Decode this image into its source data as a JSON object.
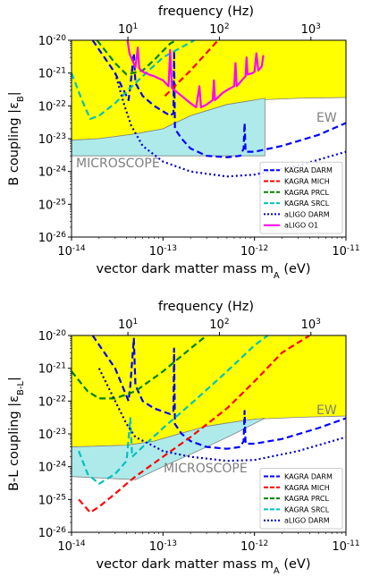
{
  "chart_data": [
    {
      "type": "line",
      "xlabel": "vector dark matter mass m_A (eV)",
      "top_xlabel": "frequency (Hz)",
      "ylabel": "B coupling |ε_B|",
      "xlog": true,
      "ylog": true,
      "xlim": [
        1e-14,
        1e-11
      ],
      "ylim": [
        1e-26,
        1e-20
      ],
      "x_ticks": [
        "10^{-14}",
        "10^{-13}",
        "10^{-12}",
        "10^{-11}"
      ],
      "y_ticks": [
        "10^{-26}",
        "10^{-25}",
        "10^{-24}",
        "10^{-23}",
        "10^{-22}",
        "10^{-21}",
        "10^{-20}"
      ],
      "top_ticks": [
        "10^{1}",
        "10^{2}",
        "10^{3}"
      ],
      "legend_position": "lower right",
      "regions": [
        {
          "label": "EW",
          "color": "#ffff00",
          "upper": 1e-20,
          "boundary": [
            [
              1e-14,
              9e-24
            ],
            [
              2e-14,
              1e-23
            ],
            [
              5e-14,
              1.4e-23
            ],
            [
              1e-13,
              2e-23
            ],
            [
              2e-13,
              5e-23
            ],
            [
              5e-13,
              1.1e-22
            ],
            [
              1e-12,
              1.5e-22
            ],
            [
              3e-12,
              1.7e-22
            ],
            [
              1e-11,
              1.8e-22
            ]
          ]
        },
        {
          "label": "MICROSCOPE",
          "color": "#aeeaea",
          "upper_curve": [
            [
              1e-14,
              9e-24
            ],
            [
              2e-14,
              1e-23
            ],
            [
              5e-14,
              1.4e-23
            ],
            [
              1e-13,
              2e-23
            ],
            [
              2e-13,
              5e-23
            ],
            [
              5e-13,
              1.1e-22
            ],
            [
              1e-12,
              1.5e-22
            ],
            [
              1.3e-12,
              1.7e-22
            ]
          ],
          "lower": 3e-24,
          "xmax": 1.3e-12
        }
      ],
      "series": [
        {
          "name": "KAGRA DARM",
          "color": "#0000ff",
          "style": "dashed",
          "points": [
            [
              1.7e-14,
              1e-20
            ],
            [
              3e-14,
              1e-21
            ],
            [
              4.2e-14,
              1.5e-22
            ],
            [
              4.4e-14,
              4e-22
            ],
            [
              4.8e-14,
              4e-21
            ],
            [
              5e-14,
              5e-22
            ],
            [
              6e-14,
              2e-22
            ],
            [
              8e-14,
              1e-22
            ],
            [
              1.2e-13,
              5e-23
            ],
            [
              1.3e-13,
              6e-23
            ],
            [
              1.32e-13,
              5e-21
            ],
            [
              1.35e-13,
              2e-23
            ],
            [
              1.6e-13,
              1e-23
            ],
            [
              2e-13,
              5e-24
            ],
            [
              3e-13,
              3e-24
            ],
            [
              5e-13,
              2.7e-24
            ],
            [
              7e-13,
              3e-24
            ],
            [
              7.6e-13,
              5e-24
            ],
            [
              7.8e-13,
              3e-23
            ],
            [
              8e-13,
              4e-24
            ],
            [
              1e-12,
              4e-24
            ],
            [
              2e-12,
              6e-24
            ],
            [
              5e-12,
              1.3e-23
            ],
            [
              1e-11,
              3e-23
            ]
          ]
        },
        {
          "name": "KAGRA MICH",
          "color": "#ff0000",
          "style": "dashed",
          "points": [
            [
              1.05e-13,
              2e-22
            ],
            [
              2e-13,
              1.2e-21
            ],
            [
              4e-13,
              1e-20
            ]
          ]
        },
        {
          "name": "KAGRA PRCL",
          "color": "#008000",
          "style": "dashed",
          "points": [
            [
              1.9e-14,
              1e-20
            ],
            [
              3e-14,
              2e-21
            ],
            [
              4e-14,
              9e-22
            ],
            [
              6e-14,
              1.2e-21
            ],
            [
              8e-14,
              2.5e-21
            ],
            [
              1.2e-13,
              8e-21
            ],
            [
              1.4e-13,
              1e-20
            ]
          ]
        },
        {
          "name": "KAGRA SRCL",
          "color": "#00c0c0",
          "style": "dashed",
          "points": [
            [
              1e-14,
              1e-21
            ],
            [
              1.3e-14,
              1.5e-22
            ],
            [
              1.6e-14,
              4e-23
            ],
            [
              2e-14,
              5e-23
            ],
            [
              3e-14,
              1.2e-22
            ],
            [
              5e-14,
              5e-22
            ],
            [
              1e-13,
              3e-21
            ],
            [
              2.2e-13,
              1e-20
            ]
          ]
        },
        {
          "name": "aLIGO DARM",
          "color": "#0000cc",
          "style": "dotted",
          "points": [
            [
              3e-14,
              1e-21
            ],
            [
              3.8e-14,
              1e-22
            ],
            [
              4.5e-14,
              2.5e-23
            ],
            [
              6e-14,
              6e-24
            ],
            [
              1e-13,
              2e-24
            ],
            [
              2e-13,
              1e-24
            ],
            [
              5e-13,
              7e-25
            ],
            [
              1e-12,
              8e-25
            ],
            [
              3e-12,
              1.5e-24
            ],
            [
              1e-11,
              4e-24
            ]
          ]
        },
        {
          "name": "aLIGO O1",
          "color": "#ff00ff",
          "style": "solid",
          "points": [
            [
              4.1e-14,
              1e-20
            ],
            [
              4.3e-14,
              4e-21
            ],
            [
              5e-14,
              1.5e-21
            ],
            [
              5.3e-14,
              6e-21
            ],
            [
              5.5e-14,
              1.4e-21
            ],
            [
              6e-14,
              1.1e-21
            ],
            [
              7e-14,
              9e-22
            ],
            [
              8e-14,
              8e-22
            ],
            [
              1e-13,
              6e-22
            ],
            [
              1.15e-13,
              4e-22
            ],
            [
              1.2e-13,
              5e-21
            ],
            [
              1.25e-13,
              3.5e-22
            ],
            [
              1.6e-13,
              2e-22
            ],
            [
              2e-13,
              1.2e-22
            ],
            [
              2.3e-13,
              9e-23
            ],
            [
              2.5e-13,
              4e-22
            ],
            [
              2.6e-13,
              9e-23
            ],
            [
              3e-13,
              1.1e-22
            ],
            [
              3.5e-13,
              1.5e-22
            ],
            [
              3.6e-13,
              6e-22
            ],
            [
              3.7e-13,
              1.5e-22
            ],
            [
              4.5e-13,
              2.5e-22
            ],
            [
              5e-13,
              3e-22
            ],
            [
              6e-13,
              4e-22
            ],
            [
              6.2e-13,
              2e-21
            ],
            [
              6.4e-13,
              4e-22
            ],
            [
              8e-13,
              8e-22
            ],
            [
              8.2e-13,
              3e-21
            ],
            [
              8.4e-13,
              9e-22
            ],
            [
              9.5e-13,
              1e-21
            ],
            [
              1e-12,
              1.1e-21
            ],
            [
              1.05e-12,
              4e-21
            ],
            [
              1.1e-12,
              1.2e-21
            ],
            [
              1.2e-12,
              1.6e-21
            ],
            [
              1.25e-12,
              3.5e-21
            ]
          ]
        }
      ]
    },
    {
      "type": "line",
      "xlabel": "vector dark matter mass m_A (eV)",
      "top_xlabel": "frequency (Hz)",
      "ylabel": "B-L coupling |ε_{B-L}|",
      "xlog": true,
      "ylog": true,
      "xlim": [
        1e-14,
        1e-11
      ],
      "ylim": [
        1e-26,
        1e-20
      ],
      "x_ticks": [
        "10^{-14}",
        "10^{-13}",
        "10^{-12}",
        "10^{-11}"
      ],
      "y_ticks": [
        "10^{-26}",
        "10^{-25}",
        "10^{-24}",
        "10^{-23}",
        "10^{-22}",
        "10^{-21}",
        "10^{-20}"
      ],
      "top_ticks": [
        "10^{1}",
        "10^{2}",
        "10^{3}"
      ],
      "legend_position": "lower right",
      "regions": [
        {
          "label": "EW",
          "color": "#ffff00",
          "upper": 1e-20,
          "boundary": [
            [
              1e-14,
              4e-24
            ],
            [
              4e-14,
              4.5e-24
            ],
            [
              8e-14,
              6e-24
            ],
            [
              1.5e-13,
              1e-23
            ],
            [
              3e-13,
              1.7e-23
            ],
            [
              6e-13,
              2.3e-23
            ],
            [
              1e-12,
              2.8e-23
            ],
            [
              3e-12,
              3.2e-23
            ],
            [
              1e-11,
              3.5e-23
            ]
          ]
        },
        {
          "label": "MICROSCOPE",
          "color": "#aeeaea",
          "upper_curve": [
            [
              1e-14,
              4e-24
            ],
            [
              4e-14,
              4.5e-24
            ],
            [
              8e-14,
              6e-24
            ],
            [
              1.5e-13,
              1e-23
            ],
            [
              3e-13,
              1.7e-23
            ],
            [
              6e-13,
              2.3e-23
            ],
            [
              1e-12,
              2.8e-23
            ],
            [
              1.3e-12,
              3e-23
            ]
          ],
          "lower_curve": [
            [
              1e-14,
              5e-25
            ],
            [
              5e-14,
              4e-25
            ],
            [
              1e-13,
              1e-24
            ],
            [
              3e-13,
              4e-24
            ],
            [
              6e-13,
              1e-23
            ],
            [
              1.3e-12,
              3e-23
            ]
          ]
        }
      ],
      "series": [
        {
          "name": "KAGRA DARM",
          "color": "#0000ff",
          "style": "dashed",
          "points": [
            [
              1.7e-14,
              1e-20
            ],
            [
              3e-14,
              1e-21
            ],
            [
              4.2e-14,
              1e-22
            ],
            [
              4.4e-14,
              3e-22
            ],
            [
              4.8e-14,
              8e-21
            ],
            [
              5e-14,
              3e-22
            ],
            [
              6e-14,
              1e-22
            ],
            [
              8e-14,
              6e-23
            ],
            [
              1.2e-13,
              4e-23
            ],
            [
              1.3e-13,
              5e-23
            ],
            [
              1.32e-13,
              4e-21
            ],
            [
              1.35e-13,
              2e-23
            ],
            [
              1.6e-13,
              1e-23
            ],
            [
              2e-13,
              6e-24
            ],
            [
              3e-13,
              4e-24
            ],
            [
              5e-13,
              3.5e-24
            ],
            [
              7e-13,
              4e-24
            ],
            [
              7.6e-13,
              6e-24
            ],
            [
              7.8e-13,
              5e-23
            ],
            [
              8e-13,
              5e-24
            ],
            [
              1e-12,
              5e-24
            ],
            [
              2e-12,
              7e-24
            ],
            [
              5e-12,
              1.5e-23
            ],
            [
              1e-11,
              3e-23
            ]
          ]
        },
        {
          "name": "KAGRA MICH",
          "color": "#ff0000",
          "style": "dashed",
          "points": [
            [
              1.2e-14,
              1e-25
            ],
            [
              1.6e-14,
              4e-26
            ],
            [
              2e-14,
              6e-26
            ],
            [
              3e-14,
              1.5e-25
            ],
            [
              4e-14,
              3e-25
            ],
            [
              5e-14,
              5e-25
            ],
            [
              1e-13,
              2e-24
            ],
            [
              2e-13,
              8e-24
            ],
            [
              5e-13,
              6e-23
            ],
            [
              1e-12,
              4e-22
            ],
            [
              2e-12,
              3e-21
            ],
            [
              4e-12,
              1e-20
            ]
          ]
        },
        {
          "name": "KAGRA PRCL",
          "color": "#008000",
          "style": "dashed",
          "points": [
            [
              1e-14,
              8e-22
            ],
            [
              1.5e-14,
              2e-22
            ],
            [
              2e-14,
              1.2e-22
            ],
            [
              3e-14,
              1.2e-22
            ],
            [
              5e-14,
              2e-22
            ],
            [
              1e-13,
              8e-22
            ],
            [
              2e-13,
              4e-21
            ],
            [
              3e-13,
              1e-20
            ]
          ]
        },
        {
          "name": "KAGRA SRCL",
          "color": "#00c0c0",
          "style": "dashed",
          "points": [
            [
              1.2e-14,
              3e-24
            ],
            [
              1.5e-14,
              6e-25
            ],
            [
              2e-14,
              3e-25
            ],
            [
              3e-14,
              6e-25
            ],
            [
              4e-14,
              1.5e-24
            ],
            [
              4.4e-14,
              3e-23
            ],
            [
              4.6e-14,
              2e-24
            ],
            [
              6e-14,
              4e-24
            ],
            [
              1e-13,
              1.5e-23
            ],
            [
              2e-13,
              8e-23
            ],
            [
              5e-13,
              8e-22
            ],
            [
              1e-12,
              5e-21
            ],
            [
              1.4e-12,
              1e-20
            ]
          ]
        },
        {
          "name": "aLIGO DARM",
          "color": "#0000cc",
          "style": "dotted",
          "points": [
            [
              2e-14,
              1e-21
            ],
            [
              3e-14,
              1e-22
            ],
            [
              4e-14,
              2e-23
            ],
            [
              5e-14,
              8e-24
            ],
            [
              7e-14,
              5e-24
            ],
            [
              1e-13,
              3e-24
            ],
            [
              2e-13,
              2e-24
            ],
            [
              5e-13,
              1.5e-24
            ],
            [
              1e-12,
              1.6e-24
            ],
            [
              3e-12,
              3e-24
            ],
            [
              1e-11,
              8e-24
            ]
          ]
        }
      ]
    }
  ]
}
